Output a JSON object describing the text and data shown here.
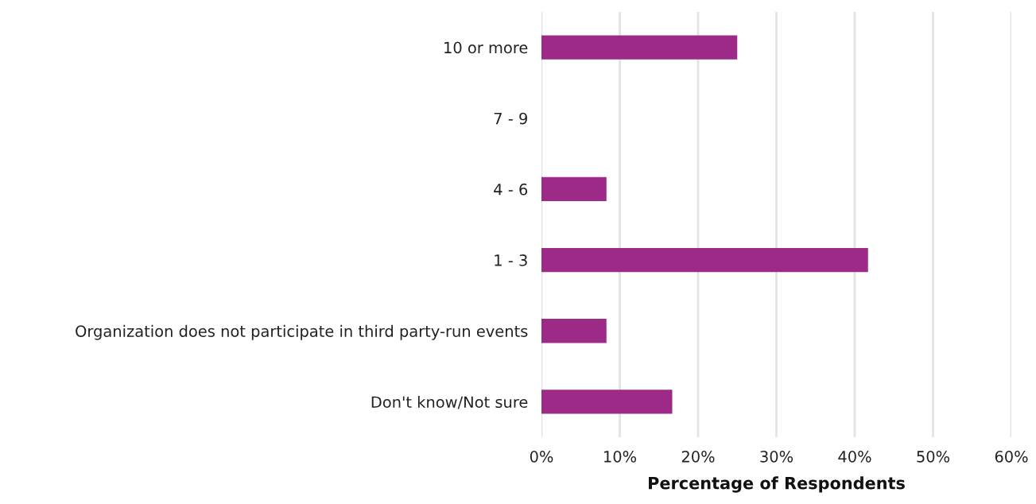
{
  "chart_data": {
    "type": "bar",
    "orientation": "horizontal",
    "xlabel": "Percentage of Respondents",
    "categories": [
      "10 or more",
      "7 - 9",
      "4 - 6",
      "1 - 3",
      "Organization does not participate in third party-run events",
      "Don't know/Not sure"
    ],
    "values": [
      25,
      0,
      8.3,
      41.7,
      8.3,
      16.7
    ],
    "color": "#9e2a87",
    "xlim": [
      0,
      60
    ],
    "xticks": [
      {
        "value": 0,
        "label": "0%"
      },
      {
        "value": 10,
        "label": "10%"
      },
      {
        "value": 20,
        "label": "20%"
      },
      {
        "value": 30,
        "label": "30%"
      },
      {
        "value": 40,
        "label": "40%"
      },
      {
        "value": 50,
        "label": "50%"
      },
      {
        "value": 60,
        "label": "60%"
      }
    ],
    "grid": "x"
  }
}
